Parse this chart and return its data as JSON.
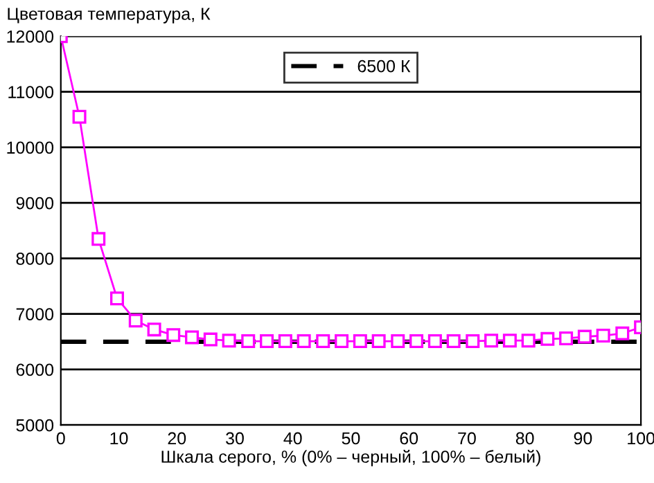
{
  "chart_data": {
    "type": "line",
    "ylabel": "Цветовая температура, К",
    "xlabel": "Шкала серого, % (0% – черный, 100% – белый)",
    "x": [
      0,
      3.2,
      6.5,
      9.7,
      12.9,
      16.1,
      19.4,
      22.6,
      25.8,
      29,
      32.3,
      35.5,
      38.7,
      41.9,
      45.2,
      48.4,
      51.6,
      54.8,
      58.1,
      61.3,
      64.5,
      67.7,
      71,
      74.2,
      77.4,
      80.6,
      83.9,
      87.1,
      90.3,
      93.5,
      96.8,
      100
    ],
    "series": [
      {
        "color": "#ff00ff",
        "values": [
          12000,
          10550,
          8350,
          7280,
          6880,
          6720,
          6620,
          6580,
          6540,
          6520,
          6510,
          6510,
          6510,
          6510,
          6510,
          6510,
          6510,
          6510,
          6510,
          6510,
          6510,
          6510,
          6510,
          6520,
          6520,
          6520,
          6550,
          6560,
          6590,
          6610,
          6650,
          6760
        ]
      }
    ],
    "ref_lines": [
      {
        "axis": "y",
        "value": 6500,
        "label": "6500 К",
        "color": "#000000",
        "line_style": "dashed"
      }
    ],
    "xlim": [
      0,
      100
    ],
    "ylim": [
      5000,
      12000
    ],
    "xticks": [
      0,
      10,
      20,
      30,
      40,
      50,
      60,
      70,
      80,
      90,
      100
    ],
    "yticks": [
      5000,
      6000,
      7000,
      8000,
      9000,
      10000,
      11000,
      12000
    ],
    "grid": "y",
    "legend": "top",
    "marker": "square",
    "line_style": "solid"
  }
}
